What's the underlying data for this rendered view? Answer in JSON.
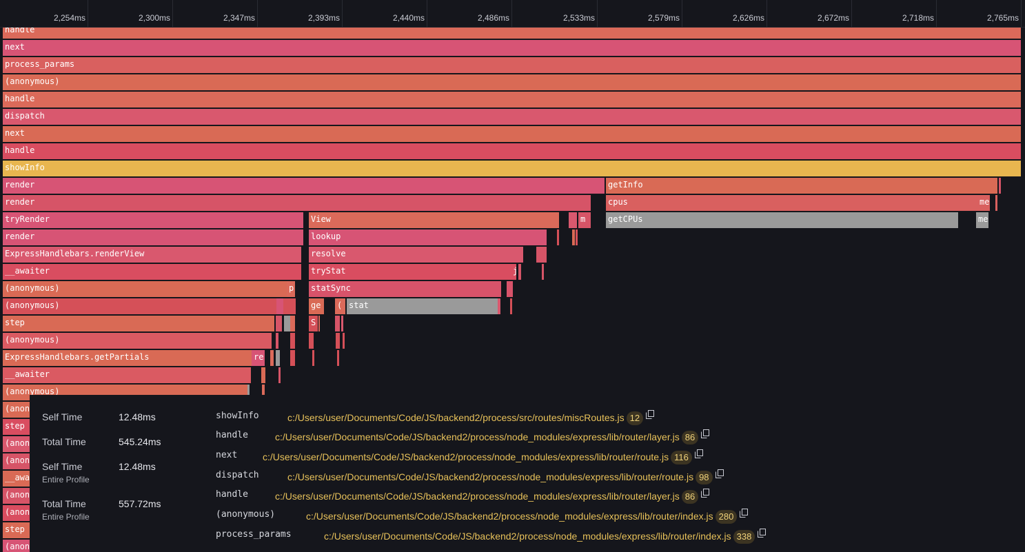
{
  "ruler": {
    "ticks": [
      "2,254ms",
      "2,300ms",
      "2,347ms",
      "2,393ms",
      "2,440ms",
      "2,486ms",
      "2,533ms",
      "2,579ms",
      "2,626ms",
      "2,672ms",
      "2,718ms",
      "2,765ms"
    ]
  },
  "colors": {
    "highlight": "#e8b64f",
    "gray": "#9a9a9a",
    "path_text": "#e7c15a"
  },
  "flame": {
    "rows": [
      [
        "handle"
      ],
      [
        "next"
      ],
      [
        "process_params"
      ],
      [
        "(anonymous)"
      ],
      [
        "handle"
      ],
      [
        "dispatch"
      ],
      [
        "next"
      ],
      [
        "handle"
      ],
      [
        "showInfo"
      ],
      [
        "render",
        "getInfo"
      ],
      [
        "render",
        "cpus",
        "me"
      ],
      [
        "tryRender",
        "View",
        "m",
        "getCPUs",
        "me"
      ],
      [
        "render",
        "lookup"
      ],
      [
        "ExpressHandlebars.renderView",
        "resolve"
      ],
      [
        "__awaiter",
        "tryStat",
        "j"
      ],
      [
        "(anonymous)",
        "p",
        "statSync"
      ],
      [
        "(anonymous)",
        "ge",
        "(",
        "stat"
      ],
      [
        "step",
        "S"
      ],
      [
        "(anonymous)"
      ],
      [
        "ExpressHandlebars.getPartials",
        "re"
      ],
      [
        "__awaiter"
      ],
      [
        "(anonymous)"
      ],
      [
        "(anon"
      ],
      [
        "step"
      ],
      [
        "(anon"
      ],
      [
        "(anon"
      ],
      [
        "__awa"
      ],
      [
        "(anon"
      ],
      [
        "(anon"
      ],
      [
        "step"
      ],
      [
        "(anon"
      ]
    ]
  },
  "detail": {
    "stats": [
      {
        "label": "Self Time",
        "sub": "",
        "value": "12.48ms"
      },
      {
        "label": "Total Time",
        "sub": "",
        "value": "545.24ms"
      },
      {
        "label": "Self Time",
        "sub": "Entire Profile",
        "value": "12.48ms"
      },
      {
        "label": "Total Time",
        "sub": "Entire Profile",
        "value": "557.72ms"
      }
    ],
    "stack": [
      {
        "fn": "showInfo",
        "path": "c:/Users/user/Documents/Code/JS/backend2/process/src/routes/miscRoutes.js",
        "line": "12"
      },
      {
        "fn": "handle",
        "path": "c:/Users/user/Documents/Code/JS/backend2/process/node_modules/express/lib/router/layer.js",
        "line": "86"
      },
      {
        "fn": "next",
        "path": "c:/Users/user/Documents/Code/JS/backend2/process/node_modules/express/lib/router/route.js",
        "line": "116"
      },
      {
        "fn": "dispatch",
        "path": "c:/Users/user/Documents/Code/JS/backend2/process/node_modules/express/lib/router/route.js",
        "line": "98"
      },
      {
        "fn": "handle",
        "path": "c:/Users/user/Documents/Code/JS/backend2/process/node_modules/express/lib/router/layer.js",
        "line": "86"
      },
      {
        "fn": "(anonymous)",
        "path": "c:/Users/user/Documents/Code/JS/backend2/process/node_modules/express/lib/router/index.js",
        "line": "280"
      },
      {
        "fn": "process_params",
        "path": "c:/Users/user/Documents/Code/JS/backend2/process/node_modules/express/lib/router/index.js",
        "line": "338"
      }
    ]
  }
}
